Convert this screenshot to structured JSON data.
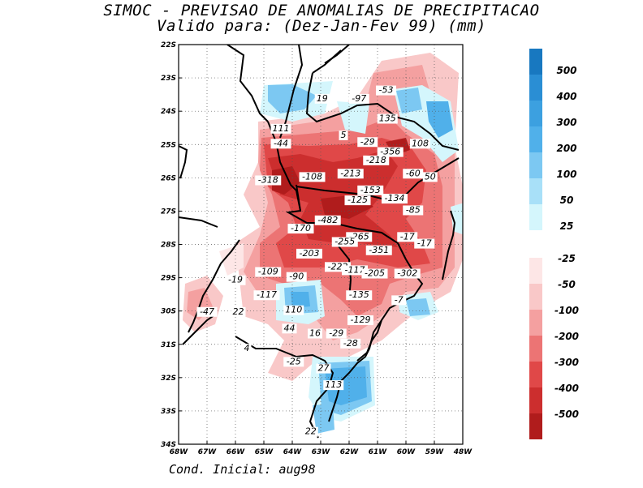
{
  "title_line1": "SIMOC - PREVISAO DE ANOMALIAS DE PRECIPITACAO",
  "title_line2": "Valido para: (Dez-Jan-Fev 99) (mm)",
  "footer": "Cond. Inicial: aug98",
  "lon_ticks": [
    "68W",
    "67W",
    "66W",
    "65W",
    "64W",
    "63W",
    "62W",
    "61W",
    "60W",
    "59W",
    "48W"
  ],
  "lat_ticks": [
    "22S",
    "23S",
    "24S",
    "25S",
    "26S",
    "27S",
    "28S",
    "29S",
    "30S",
    "31S",
    "32S",
    "33S",
    "34S"
  ],
  "colorbar_positive": [
    {
      "label": "500",
      "color": "#1878c0"
    },
    {
      "label": "400",
      "color": "#2a8ed4"
    },
    {
      "label": "300",
      "color": "#3ca0e0"
    },
    {
      "label": "200",
      "color": "#50b0ea"
    },
    {
      "label": "100",
      "color": "#7cc8f2"
    },
    {
      "label": "50",
      "color": "#a8e0f8"
    },
    {
      "label": "25",
      "color": "#d4f6fc"
    }
  ],
  "colorbar_negative": [
    {
      "label": "-25",
      "color": "#fde6e6"
    },
    {
      "label": "-50",
      "color": "#f9c8c8"
    },
    {
      "label": "-100",
      "color": "#f4a0a0"
    },
    {
      "label": "-200",
      "color": "#ec7474"
    },
    {
      "label": "-300",
      "color": "#e04848"
    },
    {
      "label": "-400",
      "color": "#cc2e2e"
    },
    {
      "label": "-500",
      "color": "#b01c1c"
    }
  ],
  "map_labels": [
    {
      "text": "19",
      "lon": -62.95,
      "lat": -23.7
    },
    {
      "text": "-97",
      "lon": -61.65,
      "lat": -23.7
    },
    {
      "text": "-53",
      "lon": -60.7,
      "lat": -23.45
    },
    {
      "text": "135",
      "lon": -60.65,
      "lat": -24.3
    },
    {
      "text": "111",
      "lon": -64.4,
      "lat": -24.6
    },
    {
      "text": "5",
      "lon": -62.2,
      "lat": -24.8
    },
    {
      "text": "-44",
      "lon": -64.4,
      "lat": -25.05
    },
    {
      "text": "-29",
      "lon": -61.35,
      "lat": -25.0
    },
    {
      "text": "108",
      "lon": -59.5,
      "lat": -25.05
    },
    {
      "text": "-356",
      "lon": -60.55,
      "lat": -25.3
    },
    {
      "text": "-218",
      "lon": -61.05,
      "lat": -25.55
    },
    {
      "text": "-213",
      "lon": -61.95,
      "lat": -25.95
    },
    {
      "text": "-60",
      "lon": -59.75,
      "lat": -25.95
    },
    {
      "text": "-108",
      "lon": -63.3,
      "lat": -26.05
    },
    {
      "text": "-318",
      "lon": -64.85,
      "lat": -26.15
    },
    {
      "text": "50",
      "lon": -59.15,
      "lat": -26.05
    },
    {
      "text": "-153",
      "lon": -61.25,
      "lat": -26.45
    },
    {
      "text": "-134",
      "lon": -60.4,
      "lat": -26.7
    },
    {
      "text": "-125",
      "lon": -61.7,
      "lat": -26.75
    },
    {
      "text": "-85",
      "lon": -59.75,
      "lat": -27.05
    },
    {
      "text": "-482",
      "lon": -62.75,
      "lat": -27.35
    },
    {
      "text": "-170",
      "lon": -63.7,
      "lat": -27.6
    },
    {
      "text": "-265",
      "lon": -61.65,
      "lat": -27.85
    },
    {
      "text": "-255",
      "lon": -62.15,
      "lat": -28.0
    },
    {
      "text": "-17",
      "lon": -59.95,
      "lat": -27.85
    },
    {
      "text": "-17",
      "lon": -59.35,
      "lat": -28.05
    },
    {
      "text": "-203",
      "lon": -63.4,
      "lat": -28.35
    },
    {
      "text": "-351",
      "lon": -60.95,
      "lat": -28.25
    },
    {
      "text": "-222",
      "lon": -62.4,
      "lat": -28.75
    },
    {
      "text": "-117",
      "lon": -61.8,
      "lat": -28.85
    },
    {
      "text": "-205",
      "lon": -61.1,
      "lat": -28.95
    },
    {
      "text": "-302",
      "lon": -59.95,
      "lat": -28.95
    },
    {
      "text": "-109",
      "lon": -64.85,
      "lat": -28.9
    },
    {
      "text": "-90",
      "lon": -63.85,
      "lat": -29.05
    },
    {
      "text": "-19",
      "lon": -66.0,
      "lat": -29.15
    },
    {
      "text": "-117",
      "lon": -64.9,
      "lat": -29.6
    },
    {
      "text": "-135",
      "lon": -61.65,
      "lat": -29.6
    },
    {
      "text": "-7",
      "lon": -60.25,
      "lat": -29.75
    },
    {
      "text": "110",
      "lon": -63.95,
      "lat": -30.05
    },
    {
      "text": "-47",
      "lon": -67.0,
      "lat": -30.1
    },
    {
      "text": "22",
      "lon": -65.9,
      "lat": -30.1
    },
    {
      "text": "-129",
      "lon": -61.6,
      "lat": -30.35
    },
    {
      "text": "44",
      "lon": -64.1,
      "lat": -30.6
    },
    {
      "text": "16",
      "lon": -63.2,
      "lat": -30.75
    },
    {
      "text": "-29",
      "lon": -62.45,
      "lat": -30.75
    },
    {
      "text": "-28",
      "lon": -61.95,
      "lat": -31.05
    },
    {
      "text": "4",
      "lon": -65.6,
      "lat": -31.2
    },
    {
      "text": "-25",
      "lon": -63.95,
      "lat": -31.6
    },
    {
      "text": "27",
      "lon": -62.9,
      "lat": -31.8
    },
    {
      "text": "113",
      "lon": -62.55,
      "lat": -32.3
    },
    {
      "text": "22",
      "lon": -63.35,
      "lat": -33.7
    }
  ]
}
